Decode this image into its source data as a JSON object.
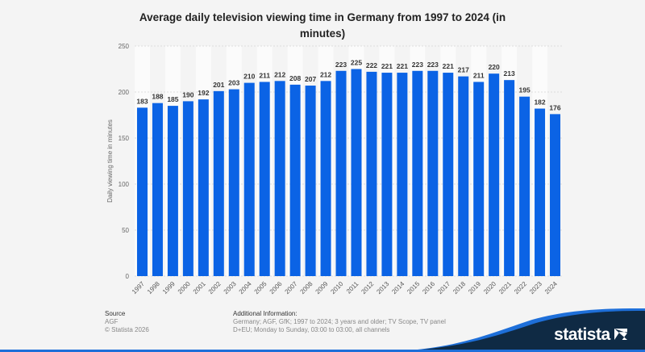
{
  "chart_data": {
    "type": "bar",
    "title": "Average daily television viewing time in Germany from 1997 to 2024 (in minutes)",
    "xlabel": "",
    "ylabel": "Daily viewing time in minutes",
    "ylim": [
      0,
      250
    ],
    "yticks": [
      0,
      50,
      100,
      150,
      200,
      250
    ],
    "grid": true,
    "categories": [
      "1997",
      "1998",
      "1999",
      "2000",
      "2001",
      "2002",
      "2003",
      "2004",
      "2005",
      "2006",
      "2007",
      "2008",
      "2009",
      "2010",
      "2011",
      "2012",
      "2013",
      "2014",
      "2015",
      "2016",
      "2017",
      "2018",
      "2019",
      "2020",
      "2021",
      "2022",
      "2023",
      "2024"
    ],
    "values": [
      183,
      188,
      185,
      190,
      192,
      201,
      203,
      210,
      211,
      212,
      208,
      207,
      212,
      223,
      225,
      222,
      221,
      221,
      223,
      223,
      221,
      217,
      211,
      220,
      213,
      195,
      182,
      176
    ],
    "bar_color": "#0b63e5"
  },
  "footer": {
    "source_label": "Source",
    "source": "AGF",
    "copyright": "© Statista 2026",
    "info_label": "Additional Information:",
    "info_line1": "Germany; AGF, GfK; 1997 to 2024; 3 years and older; TV Scope, TV panel",
    "info_line2": "D+EU; Monday to Sunday, 03:00 to 03:00, all channels",
    "brand": "statista"
  }
}
